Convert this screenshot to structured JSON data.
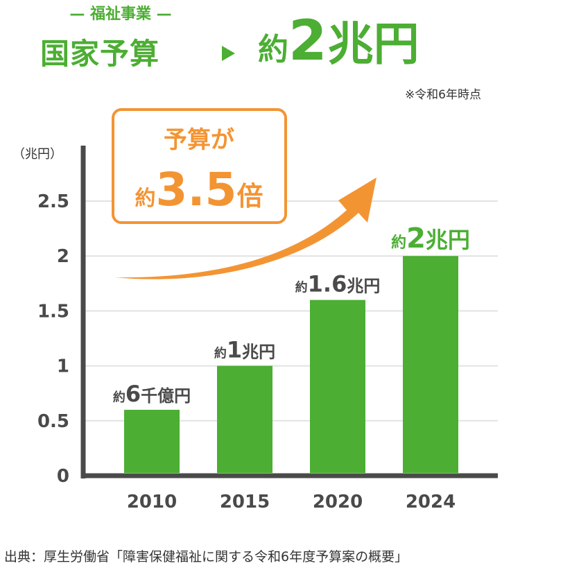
{
  "header": {
    "subtitle": "— 福祉事業 —",
    "title": "国家予算",
    "result_prefix": "約",
    "result_value": "2",
    "result_unit": "兆円",
    "note": "※令和6年時点"
  },
  "callout": {
    "line1": "予算が",
    "prefix": "約",
    "value": "3.5",
    "suffix": "倍"
  },
  "source": "出典：厚生労働省「障害保健福祉に関する令和6年度予算案の概要」",
  "colors": {
    "green": "#4cae33",
    "orange": "#f39433",
    "axis": "#4a4a4a",
    "grid": "#e2e2e2"
  },
  "chart_data": {
    "type": "bar",
    "categories": [
      "2010",
      "2015",
      "2020",
      "2024"
    ],
    "values": [
      0.6,
      1.0,
      1.6,
      2.0
    ],
    "value_labels": [
      {
        "prefix": "約",
        "main": "6",
        "unit": "千億円"
      },
      {
        "prefix": "約",
        "main": "1",
        "unit": "兆円"
      },
      {
        "prefix": "約",
        "main": "1.6",
        "unit": "兆円"
      },
      {
        "prefix": "約",
        "main": "2",
        "unit": "兆円"
      }
    ],
    "ylabel": "（兆円）",
    "yticks": [
      "0",
      "0.5",
      "1",
      "1.5",
      "2",
      "2.5"
    ],
    "ytick_values": [
      0,
      0.5,
      1,
      1.5,
      2,
      2.5
    ],
    "ylim": [
      0,
      2.5
    ],
    "grid": true
  }
}
